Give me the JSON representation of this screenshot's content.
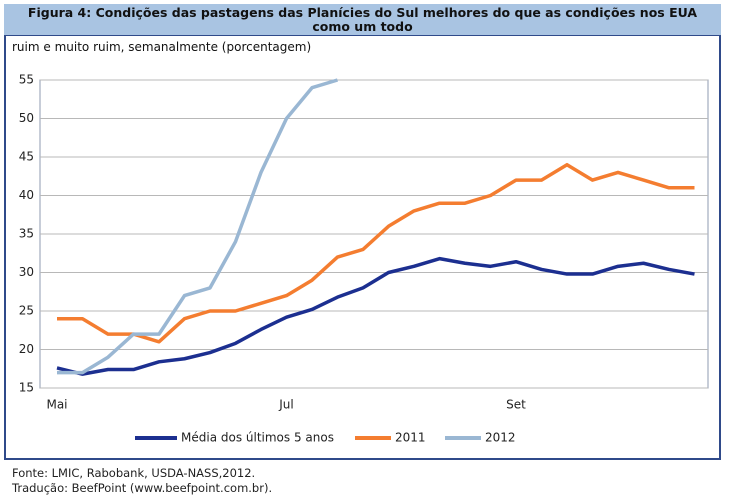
{
  "chart_data": {
    "type": "line",
    "title": "Figura 4: Condições das pastagens das Planícies do Sul melhores do que as condições nos EUA como um todo",
    "subtitle": "ruim e muito ruim, semanalmente (porcentagem)",
    "categories": [
      "Mai",
      null,
      null,
      null,
      null,
      null,
      null,
      null,
      null,
      "Jul",
      null,
      null,
      null,
      null,
      null,
      null,
      null,
      null,
      "Set",
      null,
      null,
      null,
      null,
      null,
      null,
      null
    ],
    "series": [
      {
        "name": "Média dos últimos 5 anos",
        "color": "#1c2f90",
        "values": [
          17.6,
          16.8,
          17.4,
          17.4,
          18.4,
          18.8,
          19.6,
          20.8,
          22.6,
          24.2,
          25.2,
          26.8,
          28,
          30,
          30.8,
          31.8,
          31.2,
          30.8,
          31.4,
          30.4,
          29.8,
          29.8,
          30.8,
          31.2,
          30.4,
          29.8
        ]
      },
      {
        "name": "2011",
        "color": "#f47d30",
        "values": [
          24,
          24,
          22,
          22,
          21,
          24,
          25,
          25,
          26,
          27,
          29,
          32,
          33,
          36,
          38,
          39,
          39,
          40,
          42,
          42,
          44,
          42,
          43,
          42,
          41,
          41
        ]
      },
      {
        "name": "2012",
        "color": "#9ab7d3",
        "values": [
          17,
          17,
          19,
          22,
          22,
          27,
          28,
          34,
          43,
          50,
          54,
          55,
          null,
          null,
          null,
          null,
          null,
          null,
          null,
          null,
          null,
          null,
          null,
          null,
          null,
          null
        ]
      }
    ],
    "ylim": [
      15,
      55
    ],
    "yticks": [
      15,
      20,
      25,
      30,
      35,
      40,
      45,
      50,
      55
    ],
    "grid": true,
    "notes": [
      "Fonte: LMIC, Rabobank, USDA-NASS,2012.",
      "Tradução: BeefPoint (www.beefpoint.com.br)."
    ]
  }
}
